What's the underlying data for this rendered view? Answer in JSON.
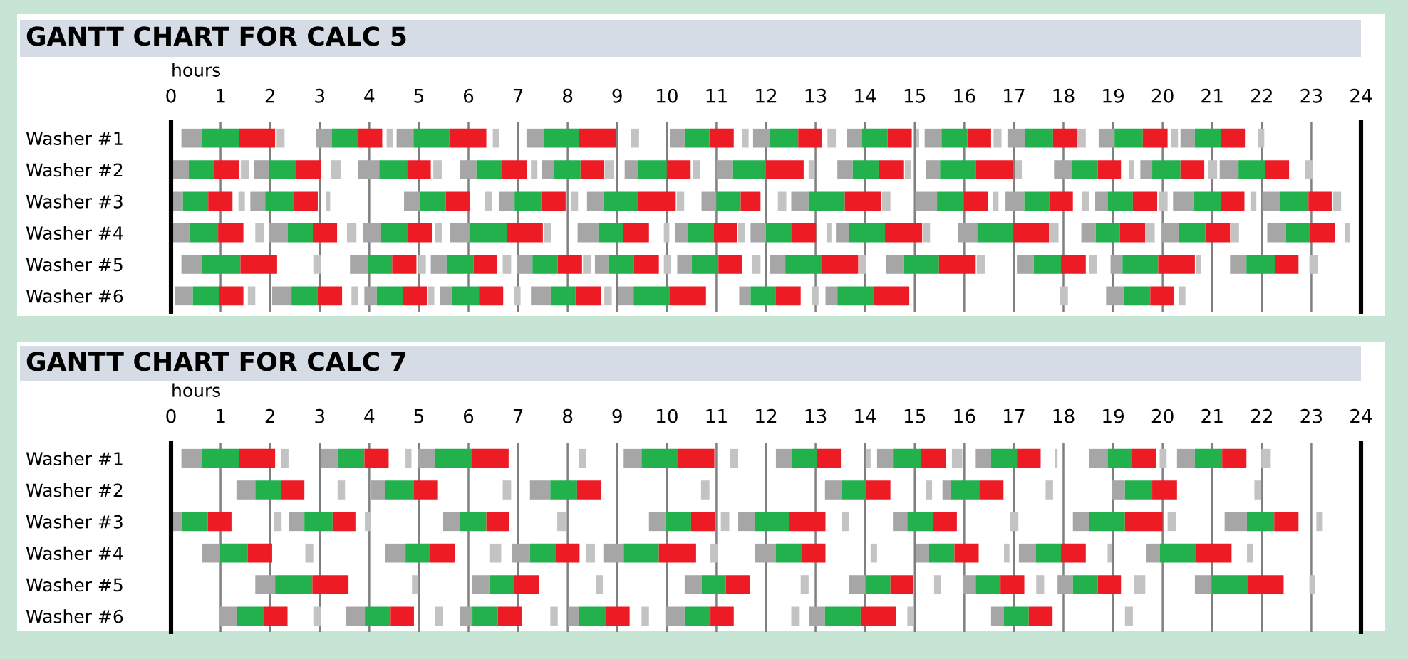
{
  "chart_data": [
    {
      "type": "bar",
      "orientation": "horizontal",
      "title": "GANTT CHART FOR CALC 5",
      "xlabel": "hours",
      "categories": [
        "Washer #1",
        "Washer #2",
        "Washer #3",
        "Washer #4",
        "Washer #5",
        "Washer #6"
      ],
      "xlim": [
        0,
        24
      ],
      "xticks": [
        0,
        1,
        2,
        3,
        4,
        5,
        6,
        7,
        8,
        9,
        10,
        11,
        12,
        13,
        14,
        15,
        16,
        17,
        18,
        19,
        20,
        21,
        22,
        23,
        24
      ],
      "grid": "x",
      "series": [
        {
          "color": "#a6a6a6",
          "base": [
            0.21,
            0.0,
            0.0,
            0.02,
            0.21,
            0.08
          ],
          "values": [
            0.42,
            0.36,
            0.24,
            0.35,
            0.42,
            0.36
          ]
        },
        {
          "color": "#22b14c",
          "base": [
            0.63,
            0.36,
            0.24,
            0.37,
            0.63,
            0.44
          ],
          "values": [
            0.74,
            0.51,
            0.51,
            0.58,
            0.77,
            0.53
          ]
        },
        {
          "color": "#ed1c24",
          "base": [
            1.37,
            0.87,
            0.75,
            0.95,
            1.4,
            0.97
          ],
          "values": [
            0.73,
            0.51,
            0.49,
            0.51,
            0.74,
            0.49
          ]
        },
        {
          "color": "#a6a6a6",
          "base": [
            2.92,
            1.68,
            1.6,
            1.98,
            3.61,
            2.04
          ],
          "values": [
            0.32,
            0.29,
            0.3,
            0.37,
            0.35,
            0.39
          ]
        },
        {
          "color": "#22b14c",
          "base": [
            3.24,
            1.97,
            1.9,
            2.35,
            3.96,
            2.43
          ],
          "values": [
            0.54,
            0.55,
            0.58,
            0.51,
            0.5,
            0.53
          ]
        },
        {
          "color": "#ed1c24",
          "base": [
            3.78,
            2.52,
            2.48,
            2.86,
            4.46,
            2.96
          ],
          "values": [
            0.48,
            0.5,
            0.48,
            0.49,
            0.49,
            0.49
          ]
        },
        {
          "color": "#a6a6a6",
          "base": [
            4.55,
            3.78,
            4.7,
            3.88,
            5.24,
            3.9
          ],
          "values": [
            0.34,
            0.42,
            0.32,
            0.36,
            0.32,
            0.25
          ]
        },
        {
          "color": "#22b14c",
          "base": [
            4.89,
            4.2,
            5.02,
            4.24,
            5.56,
            4.15
          ],
          "values": [
            0.72,
            0.56,
            0.52,
            0.54,
            0.54,
            0.53
          ]
        },
        {
          "color": "#ed1c24",
          "base": [
            5.61,
            4.76,
            5.54,
            4.78,
            6.1,
            4.68
          ],
          "values": [
            0.75,
            0.48,
            0.49,
            0.48,
            0.48,
            0.48
          ]
        },
        {
          "color": "#a6a6a6",
          "base": [
            7.17,
            5.82,
            6.62,
            5.63,
            6.97,
            5.43
          ],
          "values": [
            0.36,
            0.34,
            0.31,
            0.39,
            0.32,
            0.23
          ]
        },
        {
          "color": "#22b14c",
          "base": [
            7.53,
            6.16,
            6.93,
            6.02,
            7.29,
            5.66
          ],
          "values": [
            0.7,
            0.52,
            0.54,
            0.75,
            0.51,
            0.55
          ]
        },
        {
          "color": "#ed1c24",
          "base": [
            8.23,
            6.68,
            7.47,
            6.77,
            7.8,
            6.21
          ],
          "values": [
            0.74,
            0.5,
            0.49,
            0.73,
            0.49,
            0.49
          ]
        },
        {
          "color": "#a6a6a6",
          "base": [
            10.06,
            7.48,
            8.39,
            8.2,
            8.55,
            7.26
          ],
          "values": [
            0.3,
            0.23,
            0.33,
            0.42,
            0.27,
            0.4
          ]
        },
        {
          "color": "#22b14c",
          "base": [
            10.36,
            7.71,
            8.72,
            8.62,
            8.82,
            7.66
          ],
          "values": [
            0.5,
            0.55,
            0.7,
            0.5,
            0.52,
            0.5
          ]
        },
        {
          "color": "#ed1c24",
          "base": [
            10.86,
            8.26,
            9.42,
            9.12,
            9.34,
            8.16
          ],
          "values": [
            0.49,
            0.48,
            0.76,
            0.52,
            0.5,
            0.51
          ]
        },
        {
          "color": "#a6a6a6",
          "base": [
            11.74,
            9.15,
            10.7,
            10.16,
            10.21,
            9.02
          ],
          "values": [
            0.34,
            0.27,
            0.3,
            0.26,
            0.29,
            0.31
          ]
        },
        {
          "color": "#22b14c",
          "base": [
            12.08,
            9.42,
            11.0,
            10.42,
            10.5,
            9.33
          ],
          "values": [
            0.57,
            0.58,
            0.49,
            0.52,
            0.54,
            0.73
          ]
        },
        {
          "color": "#ed1c24",
          "base": [
            12.65,
            10.0,
            11.49,
            10.94,
            11.04,
            10.06
          ],
          "values": [
            0.48,
            0.48,
            0.4,
            0.48,
            0.48,
            0.73
          ]
        },
        {
          "color": "#a6a6a6",
          "base": [
            13.63,
            11.0,
            12.51,
            11.69,
            12.08,
            11.46
          ],
          "values": [
            0.31,
            0.32,
            0.35,
            0.31,
            0.31,
            0.23
          ]
        },
        {
          "color": "#22b14c",
          "base": [
            13.94,
            11.32,
            12.86,
            12.0,
            12.39,
            11.69
          ],
          "values": [
            0.51,
            0.68,
            0.73,
            0.53,
            0.72,
            0.51
          ]
        },
        {
          "color": "#ed1c24",
          "base": [
            14.45,
            12.0,
            13.59,
            12.53,
            13.11,
            12.2
          ],
          "values": [
            0.49,
            0.76,
            0.73,
            0.48,
            0.75,
            0.5
          ]
        },
        {
          "color": "#a6a6a6",
          "base": [
            15.2,
            13.44,
            15.01,
            13.41,
            14.42,
            13.2
          ],
          "values": [
            0.34,
            0.31,
            0.44,
            0.27,
            0.35,
            0.24
          ]
        },
        {
          "color": "#22b14c",
          "base": [
            15.54,
            13.75,
            15.45,
            13.68,
            14.77,
            13.44
          ],
          "values": [
            0.52,
            0.52,
            0.54,
            0.72,
            0.72,
            0.72
          ]
        },
        {
          "color": "#ed1c24",
          "base": [
            16.06,
            14.27,
            15.99,
            14.4,
            15.49,
            14.16
          ],
          "values": [
            0.48,
            0.5,
            0.48,
            0.75,
            0.74,
            0.73
          ]
        },
        {
          "color": "#a6a6a6",
          "base": [
            16.87,
            15.23,
            16.83,
            15.88,
            17.06,
            18.86
          ],
          "values": [
            0.36,
            0.28,
            0.38,
            0.38,
            0.34,
            0.35
          ]
        },
        {
          "color": "#22b14c",
          "base": [
            17.23,
            15.51,
            17.21,
            16.26,
            17.4,
            19.21
          ],
          "values": [
            0.56,
            0.72,
            0.5,
            0.72,
            0.55,
            0.54
          ]
        },
        {
          "color": "#ed1c24",
          "base": [
            17.79,
            16.23,
            17.71,
            16.98,
            17.95,
            19.75
          ],
          "values": [
            0.48,
            0.75,
            0.48,
            0.73,
            0.5,
            0.47
          ]
        },
        {
          "color": "#a6a6a6",
          "base": [
            18.71,
            17.81,
            18.64,
            18.36,
            18.95,
            null
          ],
          "values": [
            0.32,
            0.36,
            0.25,
            0.29,
            0.24,
            null
          ]
        },
        {
          "color": "#22b14c",
          "base": [
            19.03,
            18.17,
            18.89,
            18.65,
            19.19,
            null
          ],
          "values": [
            0.57,
            0.52,
            0.51,
            0.49,
            0.72,
            null
          ]
        },
        {
          "color": "#ed1c24",
          "base": [
            19.6,
            18.69,
            19.4,
            19.14,
            19.91,
            null
          ],
          "values": [
            0.5,
            0.47,
            0.49,
            0.51,
            0.74,
            null
          ]
        },
        {
          "color": "#a6a6a6",
          "base": [
            20.36,
            19.55,
            20.21,
            19.98,
            21.36,
            null
          ],
          "values": [
            0.29,
            0.24,
            0.41,
            0.34,
            0.33,
            null
          ]
        },
        {
          "color": "#22b14c",
          "base": [
            20.65,
            19.79,
            20.62,
            20.32,
            21.69,
            null
          ],
          "values": [
            0.53,
            0.57,
            0.55,
            0.54,
            0.58,
            null
          ]
        },
        {
          "color": "#ed1c24",
          "base": [
            21.18,
            20.36,
            21.17,
            20.86,
            22.27,
            null
          ],
          "values": [
            0.48,
            0.48,
            0.48,
            0.5,
            0.47,
            null
          ]
        },
        {
          "color": "#a6a6a6",
          "base": [
            null,
            21.15,
            22.01,
            22.11,
            null,
            null
          ],
          "values": [
            null,
            0.38,
            0.36,
            0.38,
            null,
            null
          ]
        },
        {
          "color": "#22b14c",
          "base": [
            null,
            21.53,
            22.37,
            22.49,
            null,
            null
          ],
          "values": [
            null,
            0.53,
            0.57,
            0.49,
            null,
            null
          ]
        },
        {
          "color": "#ed1c24",
          "base": [
            null,
            22.06,
            22.94,
            22.98,
            null,
            null
          ],
          "values": [
            null,
            0.49,
            0.47,
            0.49,
            null,
            null
          ]
        },
        {
          "color": "#c3c3c3",
          "base": [
            2.13,
            1.41,
            1.36,
            1.7,
            2.87,
            1.55
          ],
          "values": [
            0.16,
            0.16,
            0.13,
            0.17,
            0.15,
            0.15
          ]
        },
        {
          "color": "#c3c3c3",
          "base": [
            4.35,
            3.23,
            3.13,
            3.55,
            4.99,
            3.64
          ],
          "values": [
            0.12,
            0.19,
            0.08,
            0.19,
            0.15,
            0.13
          ]
        },
        {
          "color": "#c3c3c3",
          "base": [
            6.49,
            5.29,
            6.33,
            5.32,
            6.69,
            5.18
          ],
          "values": [
            0.13,
            0.17,
            0.15,
            0.15,
            0.17,
            0.13
          ]
        },
        {
          "color": "#c3c3c3",
          "base": [
            9.27,
            7.26,
            8.06,
            7.53,
            8.31,
            6.92
          ],
          "values": [
            0.17,
            0.13,
            0.15,
            0.13,
            0.17,
            0.13
          ]
        },
        {
          "color": "#c3c3c3",
          "base": [
            11.52,
            8.75,
            10.2,
            9.94,
            9.94,
            8.74
          ],
          "values": [
            0.13,
            0.18,
            0.15,
            0.11,
            0.15,
            0.15
          ]
        },
        {
          "color": "#c3c3c3",
          "base": [
            13.24,
            10.52,
            12.24,
            11.44,
            11.72,
            12.92
          ],
          "values": [
            0.17,
            0.15,
            0.17,
            0.14,
            0.17,
            0.14
          ]
        },
        {
          "color": "#c3c3c3",
          "base": [
            15.02,
            12.86,
            14.34,
            13.22,
            13.88,
            17.93
          ],
          "values": [
            0.07,
            0.12,
            0.17,
            0.1,
            0.14,
            0.16
          ]
        },
        {
          "color": "#c3c3c3",
          "base": [
            16.59,
            14.8,
            16.58,
            15.17,
            16.25,
            20.32
          ],
          "values": [
            0.16,
            0.12,
            0.11,
            0.14,
            0.17,
            0.14
          ]
        },
        {
          "color": "#c3c3c3",
          "base": [
            18.28,
            17.02,
            18.38,
            17.73,
            18.52,
            null
          ],
          "values": [
            0.17,
            0.14,
            0.14,
            0.17,
            0.16,
            null
          ]
        },
        {
          "color": "#c3c3c3",
          "base": [
            20.17,
            19.32,
            19.93,
            19.67,
            20.67,
            null
          ],
          "values": [
            0.14,
            0.11,
            0.17,
            0.17,
            0.11,
            null
          ]
        },
        {
          "color": "#c3c3c3",
          "base": [
            21.93,
            20.91,
            21.77,
            21.38,
            22.96,
            null
          ],
          "values": [
            0.12,
            0.19,
            0.12,
            0.16,
            0.17,
            null
          ]
        },
        {
          "color": "#c3c3c3",
          "base": [
            null,
            22.87,
            23.44,
            23.68,
            null,
            null
          ],
          "values": [
            null,
            0.16,
            0.16,
            0.1,
            null,
            null
          ]
        }
      ]
    },
    {
      "type": "bar",
      "orientation": "horizontal",
      "title": "GANTT CHART FOR CALC 7",
      "xlabel": "hours",
      "categories": [
        "Washer #1",
        "Washer #2",
        "Washer #3",
        "Washer #4",
        "Washer #5",
        "Washer #6"
      ],
      "xlim": [
        0,
        24
      ],
      "xticks": [
        0,
        1,
        2,
        3,
        4,
        5,
        6,
        7,
        8,
        9,
        10,
        11,
        12,
        13,
        14,
        15,
        16,
        17,
        18,
        19,
        20,
        21,
        22,
        23,
        24
      ],
      "grid": "x",
      "series": [
        {
          "color": "#a6a6a6",
          "base": [
            0.21,
            1.32,
            0.0,
            0.62,
            1.7,
            0.99
          ],
          "values": [
            0.42,
            0.38,
            0.22,
            0.37,
            0.4,
            0.34
          ]
        },
        {
          "color": "#22b14c",
          "base": [
            0.63,
            1.7,
            0.22,
            0.99,
            2.1,
            1.33
          ],
          "values": [
            0.74,
            0.52,
            0.52,
            0.56,
            0.75,
            0.54
          ]
        },
        {
          "color": "#ed1c24",
          "base": [
            1.37,
            2.22,
            0.74,
            1.55,
            2.85,
            1.87
          ],
          "values": [
            0.73,
            0.47,
            0.48,
            0.49,
            0.73,
            0.48
          ]
        },
        {
          "color": "#a6a6a6",
          "base": [
            3.02,
            4.03,
            2.38,
            4.32,
            6.07,
            3.52
          ],
          "values": [
            0.34,
            0.29,
            0.31,
            0.41,
            0.35,
            0.39
          ]
        },
        {
          "color": "#22b14c",
          "base": [
            3.36,
            4.32,
            2.69,
            4.73,
            6.42,
            3.91
          ],
          "values": [
            0.54,
            0.57,
            0.57,
            0.49,
            0.5,
            0.52
          ]
        },
        {
          "color": "#ed1c24",
          "base": [
            3.9,
            4.89,
            3.26,
            5.22,
            6.92,
            4.43
          ],
          "values": [
            0.49,
            0.48,
            0.46,
            0.5,
            0.5,
            0.47
          ]
        },
        {
          "color": "#a6a6a6",
          "base": [
            4.99,
            7.24,
            5.49,
            6.88,
            10.36,
            5.83
          ],
          "values": [
            0.34,
            0.41,
            0.34,
            0.36,
            0.34,
            0.25
          ]
        },
        {
          "color": "#22b14c",
          "base": [
            5.33,
            7.65,
            5.83,
            7.24,
            10.7,
            6.08
          ],
          "values": [
            0.74,
            0.54,
            0.53,
            0.52,
            0.49,
            0.51
          ]
        },
        {
          "color": "#ed1c24",
          "base": [
            6.07,
            8.19,
            6.36,
            7.76,
            11.19,
            6.59
          ],
          "values": [
            0.74,
            0.48,
            0.46,
            0.48,
            0.49,
            0.48
          ]
        },
        {
          "color": "#a6a6a6",
          "base": [
            9.13,
            13.19,
            9.64,
            8.72,
            13.68,
            8.01
          ],
          "values": [
            0.36,
            0.34,
            0.33,
            0.41,
            0.33,
            0.22
          ]
        },
        {
          "color": "#22b14c",
          "base": [
            9.49,
            13.53,
            9.97,
            9.13,
            14.01,
            8.23
          ],
          "values": [
            0.74,
            0.49,
            0.52,
            0.71,
            0.5,
            0.54
          ]
        },
        {
          "color": "#ed1c24",
          "base": [
            10.23,
            14.02,
            10.49,
            9.84,
            14.51,
            8.77
          ],
          "values": [
            0.73,
            0.49,
            0.48,
            0.75,
            0.46,
            0.48
          ]
        },
        {
          "color": "#a6a6a6",
          "base": [
            12.2,
            15.56,
            11.44,
            11.77,
            15.97,
            9.97
          ],
          "values": [
            0.33,
            0.17,
            0.33,
            0.43,
            0.26,
            0.39
          ]
        },
        {
          "color": "#22b14c",
          "base": [
            12.53,
            15.73,
            11.77,
            12.2,
            16.23,
            10.36
          ],
          "values": [
            0.5,
            0.57,
            0.69,
            0.52,
            0.5,
            0.52
          ]
        },
        {
          "color": "#ed1c24",
          "base": [
            13.03,
            16.3,
            12.46,
            12.72,
            16.73,
            10.88
          ],
          "values": [
            0.48,
            0.49,
            0.74,
            0.48,
            0.48,
            0.47
          ]
        },
        {
          "color": "#a6a6a6",
          "base": [
            14.24,
            18.97,
            14.56,
            15.03,
            17.88,
            12.87
          ],
          "values": [
            0.32,
            0.27,
            0.29,
            0.26,
            0.31,
            0.32
          ]
        },
        {
          "color": "#22b14c",
          "base": [
            14.56,
            19.24,
            14.85,
            15.29,
            18.19,
            13.19
          ],
          "values": [
            0.57,
            0.55,
            0.52,
            0.51,
            0.5,
            0.72
          ]
        },
        {
          "color": "#ed1c24",
          "base": [
            15.13,
            19.79,
            15.37,
            15.8,
            18.69,
            13.91
          ],
          "values": [
            0.5,
            0.5,
            0.48,
            0.49,
            0.47,
            0.72
          ]
        },
        {
          "color": "#a6a6a6",
          "base": [
            16.23,
            null,
            18.19,
            17.1,
            20.65,
            16.54
          ],
          "values": [
            0.31,
            null,
            0.33,
            0.34,
            0.34,
            0.26
          ]
        },
        {
          "color": "#22b14c",
          "base": [
            16.54,
            null,
            18.52,
            17.44,
            20.99,
            16.8
          ],
          "values": [
            0.52,
            null,
            0.72,
            0.51,
            0.73,
            0.5
          ]
        },
        {
          "color": "#ed1c24",
          "base": [
            17.06,
            null,
            19.24,
            17.95,
            21.72,
            17.3
          ],
          "values": [
            0.48,
            null,
            0.76,
            0.5,
            0.72,
            0.48
          ]
        },
        {
          "color": "#a6a6a6",
          "base": [
            18.52,
            null,
            21.25,
            19.67,
            null,
            null
          ],
          "values": [
            0.37,
            null,
            0.45,
            0.27,
            null,
            null
          ]
        },
        {
          "color": "#22b14c",
          "base": [
            18.89,
            null,
            21.7,
            19.94,
            null,
            null
          ],
          "values": [
            0.49,
            null,
            0.55,
            0.73,
            null,
            null
          ]
        },
        {
          "color": "#ed1c24",
          "base": [
            19.38,
            null,
            22.25,
            20.67,
            null,
            null
          ],
          "values": [
            0.49,
            null,
            0.49,
            0.72,
            null,
            null
          ]
        },
        {
          "color": "#a6a6a6",
          "base": [
            20.29,
            null,
            null,
            null,
            null,
            null
          ],
          "values": [
            0.36,
            null,
            null,
            null,
            null,
            null
          ]
        },
        {
          "color": "#22b14c",
          "base": [
            20.65,
            null,
            null,
            null,
            null,
            null
          ],
          "values": [
            0.55,
            null,
            null,
            null,
            null,
            null
          ]
        },
        {
          "color": "#ed1c24",
          "base": [
            21.2,
            null,
            null,
            null,
            null,
            null
          ],
          "values": [
            0.49,
            null,
            null,
            null,
            null,
            null
          ]
        },
        {
          "color": "#c3c3c3",
          "base": [
            2.22,
            3.36,
            2.08,
            2.71,
            4.86,
            2.87
          ],
          "values": [
            0.15,
            0.15,
            0.15,
            0.16,
            0.13,
            0.15
          ]
        },
        {
          "color": "#c3c3c3",
          "base": [
            4.73,
            6.69,
            3.91,
            6.42,
            8.58,
            5.32
          ],
          "values": [
            0.12,
            0.17,
            0.12,
            0.24,
            0.13,
            0.17
          ]
        },
        {
          "color": "#c3c3c3",
          "base": [
            8.23,
            10.69,
            7.79,
            8.37,
            12.7,
            7.65
          ],
          "values": [
            0.14,
            0.17,
            0.18,
            0.18,
            0.16,
            0.15
          ]
        },
        {
          "color": "#c3c3c3",
          "base": [
            11.27,
            15.23,
            11.09,
            10.88,
            15.39,
            9.49
          ],
          "values": [
            0.17,
            0.12,
            0.17,
            0.15,
            0.14,
            0.15
          ]
        },
        {
          "color": "#c3c3c3",
          "base": [
            14.01,
            17.64,
            13.53,
            14.11,
            17.45,
            12.51
          ],
          "values": [
            0.1,
            0.15,
            0.14,
            0.13,
            0.16,
            0.17
          ]
        },
        {
          "color": "#c3c3c3",
          "base": [
            15.75,
            21.85,
            16.92,
            16.8,
            19.43,
            14.85
          ],
          "values": [
            0.21,
            0.14,
            0.17,
            0.11,
            0.22,
            0.12
          ]
        },
        {
          "color": "#c3c3c3",
          "base": [
            17.83,
            null,
            20.1,
            18.89,
            22.96,
            19.24
          ],
          "values": [
            0.05,
            null,
            0.17,
            0.09,
            0.12,
            0.16
          ]
        },
        {
          "color": "#c3c3c3",
          "base": [
            19.94,
            null,
            23.1,
            21.7,
            null,
            null
          ],
          "values": [
            0.14,
            null,
            0.13,
            0.13,
            null,
            null
          ]
        },
        {
          "color": "#c3c3c3",
          "base": [
            21.99,
            null,
            null,
            null,
            null,
            null
          ],
          "values": [
            0.19,
            null,
            null,
            null,
            null,
            null
          ]
        }
      ]
    }
  ]
}
